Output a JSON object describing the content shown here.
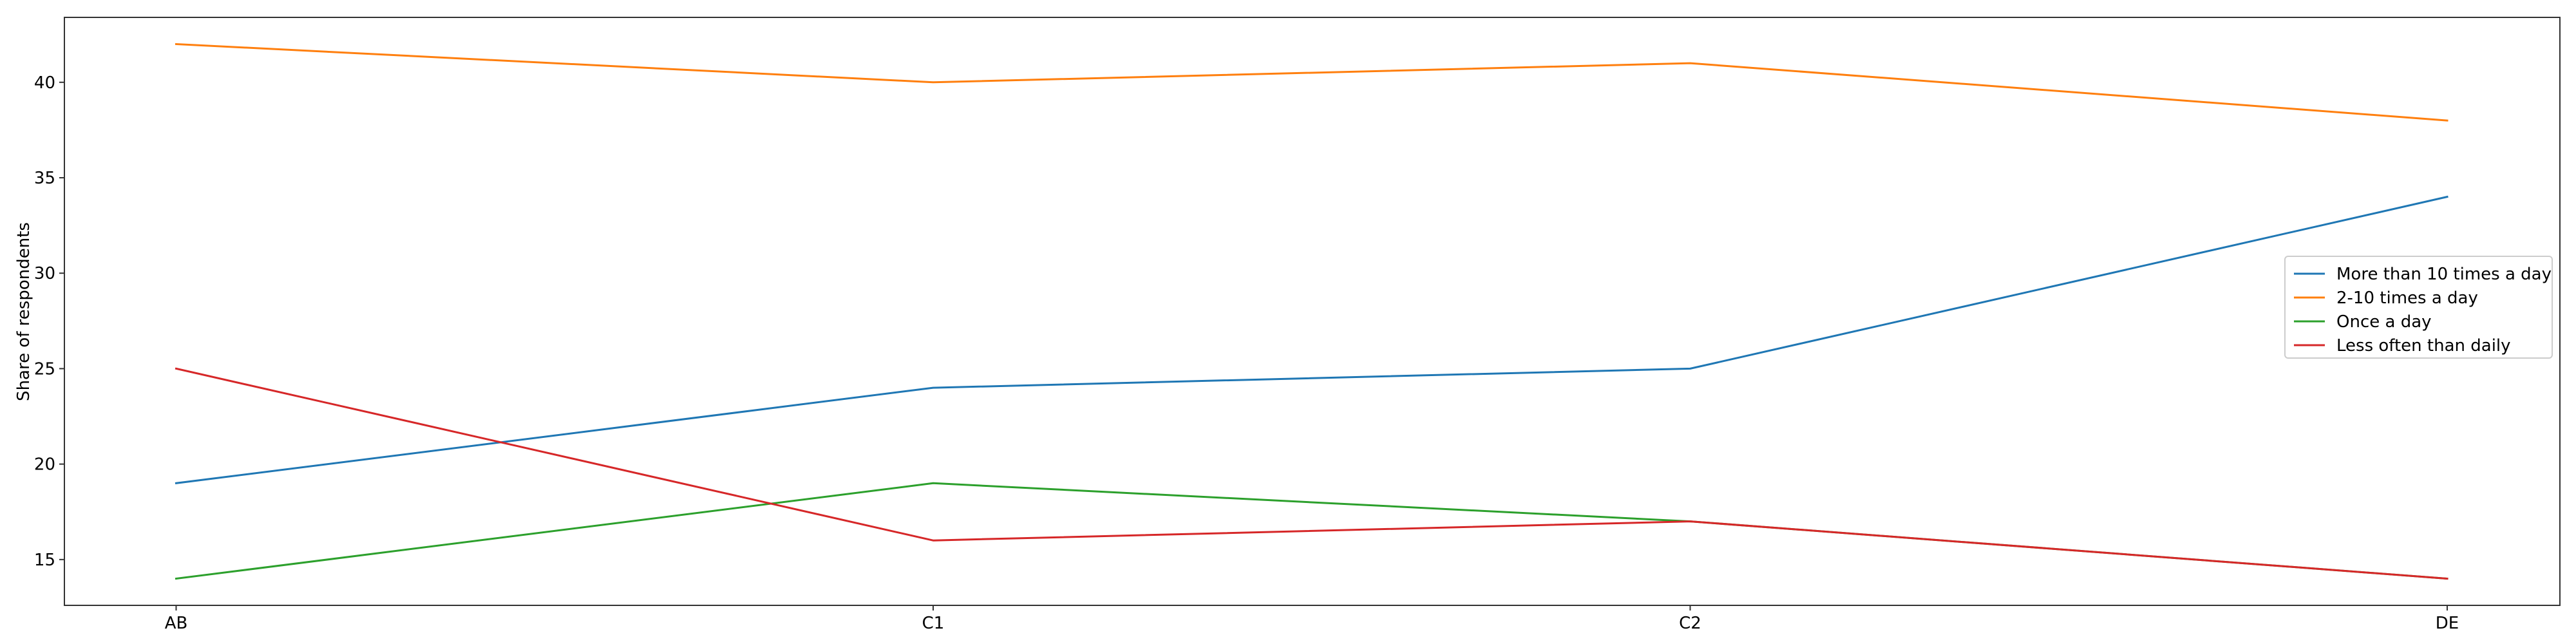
{
  "chart_data": {
    "type": "line",
    "title": "",
    "xlabel": "",
    "ylabel": "Share of respondents",
    "categories": [
      "AB",
      "C1",
      "C2",
      "DE"
    ],
    "yticks": [
      15,
      20,
      25,
      30,
      35,
      40
    ],
    "ylim": [
      12.6,
      43.4
    ],
    "grid": false,
    "legend_position": "center-right",
    "series": [
      {
        "name": "More than 10 times a day",
        "color": "#1f77b4",
        "values": [
          19,
          24,
          25,
          34
        ]
      },
      {
        "name": "2-10 times a day",
        "color": "#ff7f0e",
        "values": [
          42,
          40,
          41,
          38
        ]
      },
      {
        "name": "Once a day",
        "color": "#2ca02c",
        "values": [
          14,
          19,
          17,
          14
        ]
      },
      {
        "name": "Less often than daily",
        "color": "#d62728",
        "values": [
          25,
          16,
          17,
          14
        ]
      }
    ]
  }
}
